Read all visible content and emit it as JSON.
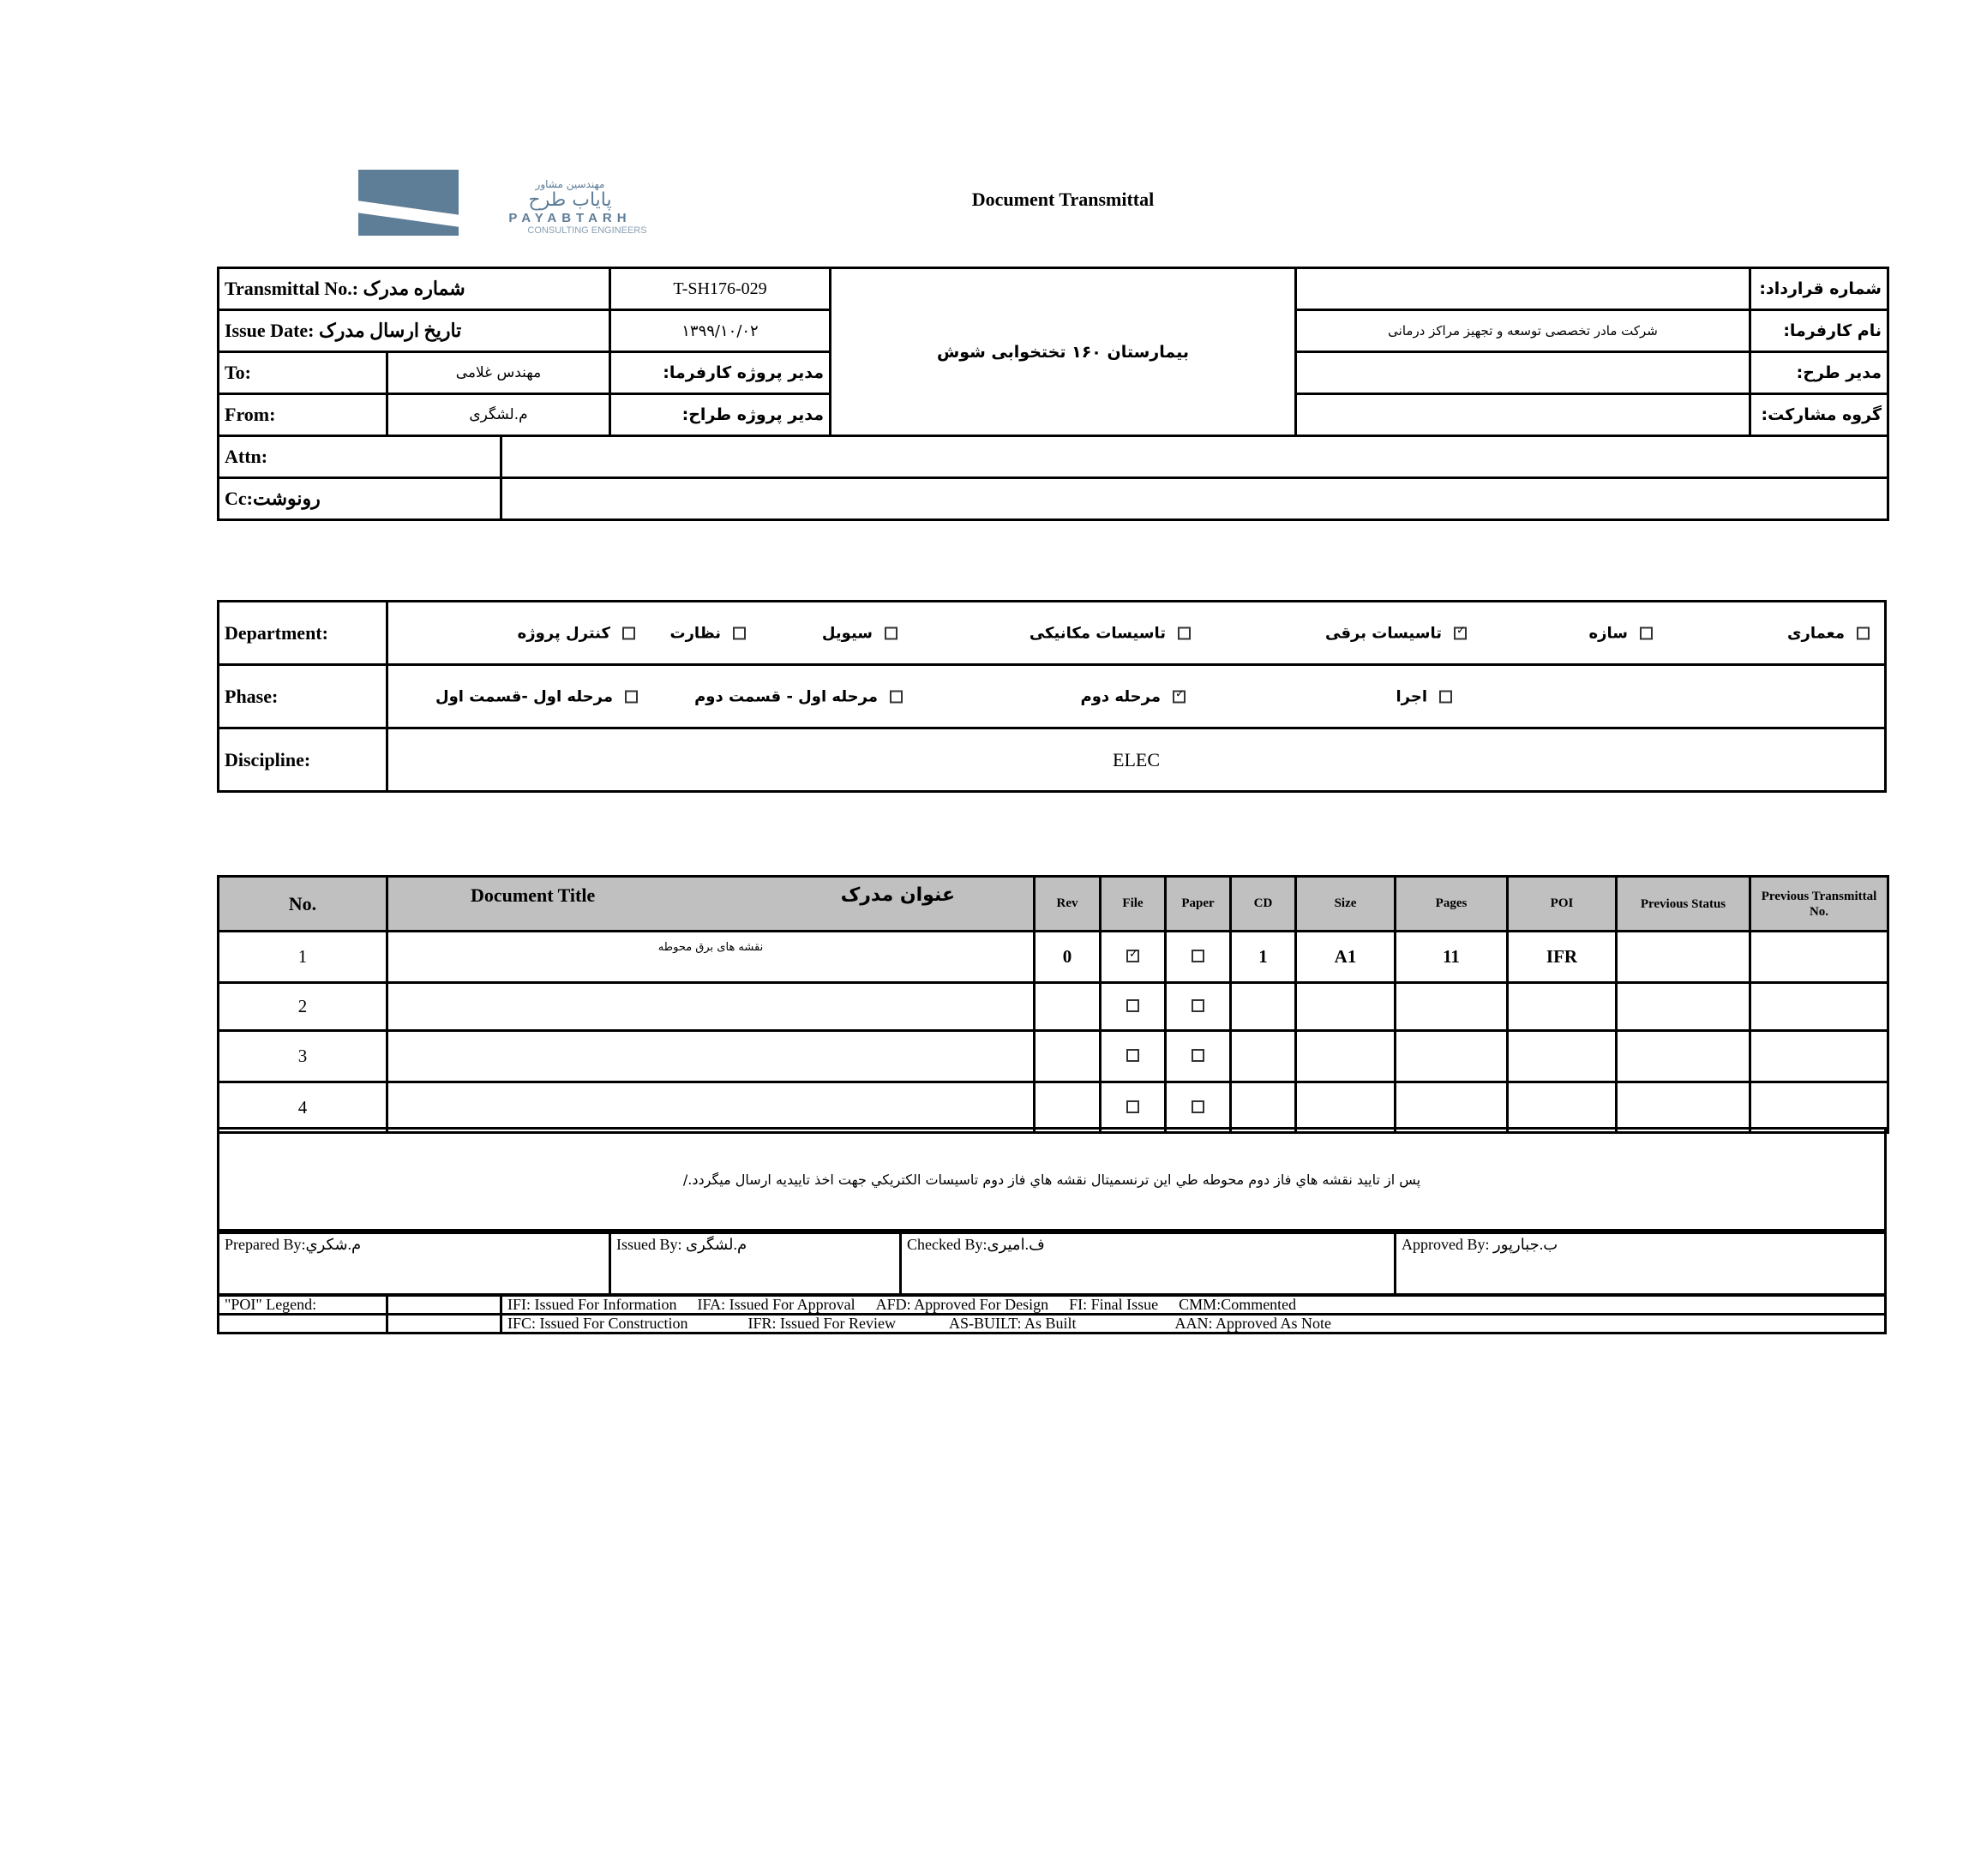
{
  "logo": {
    "fa_small": "مهندسین مشاور",
    "fa_name": "پایاب طرح",
    "en_name": "PAYABTARH",
    "en_sub": "CONSULTING ENGINEERS",
    "color": "#5e7d97"
  },
  "title": "Document Transmittal",
  "header": {
    "transmittal_label": "Transmittal No.: شماره مدرک",
    "transmittal_value": "T-SH176-029",
    "issue_date_label": "Issue Date: تاریخ ارسال مدرک",
    "issue_date_value": "۱۳۹۹/۱۰/۰۲",
    "to_label": "To:",
    "to_value": "مهندس غلامی",
    "client_pm_label": "مدیر پروژه کارفرما:",
    "from_label": "From:",
    "from_value": "م.لشگری",
    "designer_pm_label": "مدیر پروژه طراح:",
    "project_name": "بیمارستان ۱۶۰ تختخوابی شوش",
    "contract_no_label": "شماره قرارداد:",
    "contract_no_value": "",
    "client_name_label": "نام کارفرما:",
    "client_name_value": "شرکت مادر تخصصی توسعه و تجهیز مراکز درمانی",
    "plan_manager_label": "مدیر طرح:",
    "plan_manager_value": "",
    "partnership_label": "گروه مشارکت:",
    "partnership_value": "",
    "attn_label": "Attn:",
    "attn_value": "",
    "cc_label": "Cc:رونوشت",
    "cc_value": ""
  },
  "department": {
    "label": "Department:",
    "options": [
      {
        "label": "معماری",
        "checked": false
      },
      {
        "label": "سازه",
        "checked": false
      },
      {
        "label": "تاسیسات برقی",
        "checked": true
      },
      {
        "label": "تاسیسات مکانیکی",
        "checked": false
      },
      {
        "label": "سیویل",
        "checked": false
      },
      {
        "label": "نظارت",
        "checked": false
      },
      {
        "label": "کنترل پروژه",
        "checked": false
      }
    ]
  },
  "phase": {
    "label": "Phase:",
    "options": [
      {
        "label": "اجرا",
        "checked": false
      },
      {
        "label": "مرحله دوم",
        "checked": true
      },
      {
        "label": "مرحله اول - قسمت دوم",
        "checked": false
      },
      {
        "label": "مرحله اول -قسمت اول",
        "checked": false
      }
    ]
  },
  "discipline": {
    "label": "Discipline:",
    "value": "ELEC"
  },
  "documents": {
    "columns": {
      "no": "No.",
      "title_en": "Document Title",
      "title_fa": "عنوان مدرک",
      "rev": "Rev",
      "file": "File",
      "paper": "Paper",
      "cd": "CD",
      "size": "Size",
      "pages": "Pages",
      "poi": "POI",
      "prev_status": "Previous Status",
      "prev_transmittal": "Previous Transmittal No."
    },
    "rows": [
      {
        "no": "1",
        "title": "نقشه های برق محوطه",
        "rev": "0",
        "file": true,
        "paper": false,
        "cd": "1",
        "size": "A1",
        "pages": "11",
        "poi": "IFR",
        "prev_status": "",
        "prev_transmittal": ""
      },
      {
        "no": "2",
        "title": "",
        "rev": "",
        "file": false,
        "paper": false,
        "cd": "",
        "size": "",
        "pages": "",
        "poi": "",
        "prev_status": "",
        "prev_transmittal": ""
      },
      {
        "no": "3",
        "title": "",
        "rev": "",
        "file": false,
        "paper": false,
        "cd": "",
        "size": "",
        "pages": "",
        "poi": "",
        "prev_status": "",
        "prev_transmittal": ""
      },
      {
        "no": "4",
        "title": "",
        "rev": "",
        "file": false,
        "paper": false,
        "cd": "",
        "size": "",
        "pages": "",
        "poi": "",
        "prev_status": "",
        "prev_transmittal": ""
      }
    ]
  },
  "note": "پس از تایید نقشه هاي فاز دوم محوطه طي اين ترنسميتال نقشه هاي فاز دوم تاسيسات الكتريكي جهت اخذ تاييديه ارسال ميگردد./",
  "signatures": {
    "prepared": "Prepared By:م.شكري",
    "issued": "Issued By: م.لشگری",
    "checked": "Checked By:ف.امیری",
    "approved": "Approved By: ب.جبارپور"
  },
  "legend": {
    "label": "\"POI\" Legend:",
    "row1": [
      "IFI:  Issued For Information",
      "IFA: Issued For Approval",
      "AFD: Approved For Design",
      "FI: Final Issue",
      "CMM:Commented"
    ],
    "row2": [
      "IFC: Issued For Construction",
      "IFR: Issued For Review",
      "AS-BUILT: As Built",
      "AAN: Approved As Note"
    ]
  }
}
